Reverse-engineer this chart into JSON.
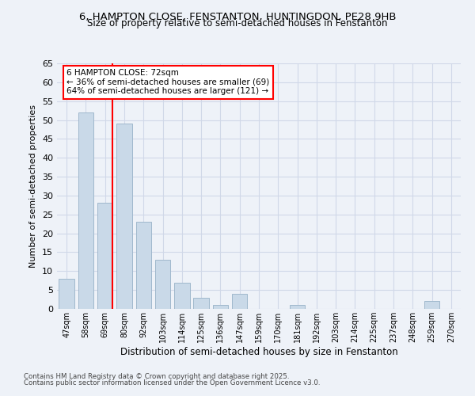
{
  "title_line1": "6, HAMPTON CLOSE, FENSTANTON, HUNTINGDON, PE28 9HB",
  "title_line2": "Size of property relative to semi-detached houses in Fenstanton",
  "xlabel": "Distribution of semi-detached houses by size in Fenstanton",
  "ylabel": "Number of semi-detached properties",
  "categories": [
    "47sqm",
    "58sqm",
    "69sqm",
    "80sqm",
    "92sqm",
    "103sqm",
    "114sqm",
    "125sqm",
    "136sqm",
    "147sqm",
    "159sqm",
    "170sqm",
    "181sqm",
    "192sqm",
    "203sqm",
    "214sqm",
    "225sqm",
    "237sqm",
    "248sqm",
    "259sqm",
    "270sqm"
  ],
  "values": [
    8,
    52,
    28,
    49,
    23,
    13,
    7,
    3,
    1,
    4,
    0,
    0,
    1,
    0,
    0,
    0,
    0,
    0,
    0,
    2,
    0
  ],
  "bar_color": "#c9d9e8",
  "bar_edge_color": "#a0b8cc",
  "grid_color": "#d0d8e8",
  "background_color": "#eef2f8",
  "vline_color": "red",
  "annotation_title": "6 HAMPTON CLOSE: 72sqm",
  "annotation_line1": "← 36% of semi-detached houses are smaller (69)",
  "annotation_line2": "64% of semi-detached houses are larger (121) →",
  "annotation_box_color": "white",
  "annotation_box_edge": "red",
  "ylim": [
    0,
    65
  ],
  "yticks": [
    0,
    5,
    10,
    15,
    20,
    25,
    30,
    35,
    40,
    45,
    50,
    55,
    60,
    65
  ],
  "footnote_line1": "Contains HM Land Registry data © Crown copyright and database right 2025.",
  "footnote_line2": "Contains public sector information licensed under the Open Government Licence v3.0."
}
